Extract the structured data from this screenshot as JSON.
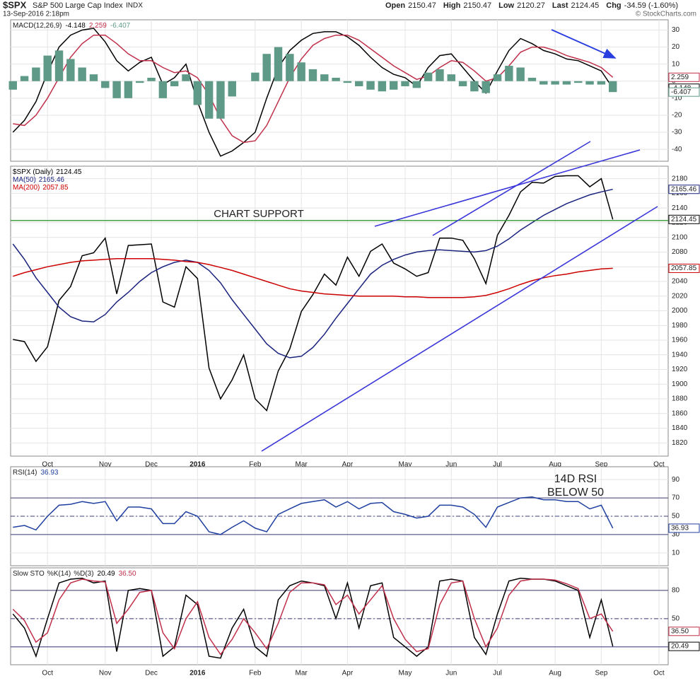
{
  "header": {
    "symbol": "$SPX",
    "name": "S&P 500 Large Cap Index",
    "exchange": "INDX",
    "timestamp": "13-Sep-2016 2:18pm",
    "quote": [
      [
        "Open",
        "2150.47"
      ],
      [
        "High",
        "2150.47"
      ],
      [
        "Low",
        "2120.27"
      ],
      [
        "Last",
        "2124.45"
      ],
      [
        "Chg",
        "-34.59 (-1.60%)"
      ]
    ],
    "credit": "© StockCharts.com"
  },
  "chart_data": [
    {
      "type": "line",
      "title": "MACD(12,26,9)",
      "ylim": [
        -47,
        36
      ],
      "yticks": [
        30,
        20,
        10,
        0,
        -10,
        -20,
        -30,
        -40
      ],
      "grid": true,
      "series": [
        {
          "color": "#000000",
          "values": [
            -30,
            -23,
            -12,
            5,
            20,
            27,
            30,
            31,
            23,
            12,
            6,
            11,
            14,
            -2,
            2,
            10,
            -12,
            -30,
            -44,
            -41,
            -36,
            -30,
            -10,
            8,
            18,
            24,
            28,
            29,
            29,
            26,
            21,
            14,
            8,
            4,
            2,
            -3,
            8,
            15,
            16,
            8,
            0,
            -7,
            6,
            18,
            25,
            22,
            18,
            16,
            13,
            12,
            9,
            6,
            -4.148,
            null,
            null,
            null,
            null
          ]
        },
        {
          "color": "#c0304a",
          "values": [
            -25,
            -26,
            -20,
            -10,
            2,
            14,
            22,
            27,
            27,
            22,
            16,
            12,
            12,
            8,
            5,
            6,
            2,
            -8,
            -22,
            -32,
            -36,
            -35,
            -26,
            -12,
            2,
            13,
            21,
            25,
            27,
            27,
            24,
            19,
            14,
            9,
            5,
            1,
            3,
            8,
            12,
            11,
            6,
            0,
            2,
            9,
            17,
            20,
            20,
            18,
            15,
            13,
            11,
            8,
            2.259,
            null,
            null,
            null,
            null
          ]
        },
        {
          "type": "bar",
          "color": "#5f9a88",
          "values": [
            -5,
            3,
            8,
            15,
            18,
            13,
            8,
            4,
            -4,
            -10,
            -10,
            -1,
            2,
            -10,
            -3,
            4,
            -14,
            -22,
            -22,
            -9,
            0,
            5,
            16,
            20,
            16,
            11,
            7,
            4,
            2,
            -1,
            -3,
            -5,
            -6,
            -5,
            -3,
            -4,
            5,
            7,
            4,
            -3,
            -6,
            -7,
            4,
            9,
            8,
            2,
            -2,
            -2,
            -2,
            -1,
            -2,
            -2,
            -6.407,
            null,
            null,
            null,
            null
          ]
        }
      ]
    },
    {
      "type": "line",
      "ylim": [
        1802,
        2197
      ],
      "yticks": [
        1820,
        1840,
        1860,
        1880,
        1900,
        1920,
        1940,
        1960,
        1980,
        2000,
        2020,
        2040,
        2060,
        2080,
        2100,
        2120,
        2140,
        2160,
        2180
      ],
      "grid": true,
      "categories": [
        null,
        null,
        null,
        "Oct",
        null,
        null,
        null,
        null,
        "Nov",
        null,
        null,
        null,
        "Dec",
        null,
        null,
        null,
        "2016",
        null,
        null,
        null,
        null,
        "Feb",
        null,
        null,
        null,
        "Mar",
        null,
        null,
        null,
        "Apr",
        null,
        null,
        null,
        null,
        "May",
        null,
        null,
        null,
        "Jun",
        null,
        null,
        null,
        "Jul",
        null,
        null,
        null,
        null,
        "Aug",
        null,
        null,
        null,
        "Sep",
        null,
        null,
        null,
        null,
        "Oct"
      ],
      "series": [
        {
          "name": "$SPX (Daily)",
          "color": "#000000",
          "values": [
            1961,
            1958,
            1931,
            1951,
            2014,
            2033,
            2075,
            2079,
            2099,
            2023,
            2089,
            2090,
            2091,
            2012,
            2005,
            2060,
            2044,
            1922,
            1880,
            1906,
            1940,
            1880,
            1864,
            1918,
            1948,
            1999,
            2022,
            2050,
            2035,
            2073,
            2047,
            2081,
            2091,
            2065,
            2057,
            2047,
            2052,
            2099,
            2099,
            2096,
            2071,
            2037,
            2103,
            2130,
            2162,
            2175,
            2174,
            2183,
            2184,
            2184,
            2169,
            2180,
            2124.45,
            null,
            null,
            null,
            null
          ]
        },
        {
          "name": "MA(50)",
          "color": "#1a237e",
          "values": [
            2091,
            2070,
            2045,
            2025,
            2005,
            1992,
            1986,
            1985,
            1995,
            2012,
            2025,
            2040,
            2052,
            2060,
            2066,
            2069,
            2066,
            2055,
            2038,
            2015,
            1995,
            1975,
            1955,
            1942,
            1936,
            1938,
            1950,
            1968,
            1990,
            2010,
            2030,
            2050,
            2062,
            2070,
            2076,
            2080,
            2082,
            2083,
            2082,
            2081,
            2080,
            2082,
            2088,
            2098,
            2110,
            2120,
            2130,
            2138,
            2146,
            2152,
            2158,
            2162,
            2165.46,
            null,
            null,
            null,
            null
          ]
        },
        {
          "name": "MA(200)",
          "color": "#cc0000",
          "values": [
            2047,
            2052,
            2056,
            2060,
            2063,
            2066,
            2068,
            2069,
            2070,
            2071,
            2071,
            2071,
            2071,
            2070,
            2069,
            2067,
            2066,
            2063,
            2059,
            2055,
            2050,
            2045,
            2040,
            2035,
            2030,
            2027,
            2025,
            2023,
            2022,
            2021,
            2020,
            2020,
            2020,
            2020,
            2019,
            2019,
            2018,
            2018,
            2018,
            2018,
            2019,
            2021,
            2025,
            2030,
            2036,
            2041,
            2045,
            2048,
            2050,
            2053,
            2055,
            2057,
            2057.85,
            null,
            null,
            null,
            null
          ]
        }
      ],
      "annotations": [
        {
          "text": "CHART SUPPORT",
          "value": 2123,
          "color": "#2e9a2e"
        }
      ]
    },
    {
      "type": "line",
      "title": "RSI(14)",
      "ylim": [
        -4,
        104
      ],
      "yticks": [
        90,
        70,
        50,
        30,
        10
      ],
      "grid": true,
      "reference_lines": [
        70,
        30
      ],
      "dashed_lines": [
        50
      ],
      "series": [
        {
          "color": "#2040a0",
          "values": [
            38,
            40,
            35,
            50,
            62,
            63,
            66,
            64,
            66,
            45,
            60,
            60,
            58,
            42,
            42,
            55,
            50,
            33,
            30,
            38,
            45,
            37,
            33,
            52,
            58,
            64,
            66,
            68,
            60,
            66,
            58,
            64,
            65,
            55,
            52,
            48,
            50,
            62,
            62,
            60,
            52,
            38,
            60,
            65,
            70,
            71,
            68,
            68,
            66,
            66,
            58,
            62,
            36.93,
            null,
            null,
            null,
            null
          ]
        }
      ],
      "annotations": [
        {
          "text": "14D RSI",
          "color": "#e00000"
        },
        {
          "text": "BELOW 50",
          "color": "#e00000"
        }
      ]
    },
    {
      "type": "line",
      "title": "Slow STO",
      "ylim": [
        1,
        104
      ],
      "yticks": [
        80,
        50,
        20
      ],
      "grid": true,
      "reference_lines": [
        80,
        20
      ],
      "dashed_lines": [
        50
      ],
      "categories": [
        null,
        null,
        null,
        "Oct",
        null,
        null,
        null,
        null,
        "Nov",
        null,
        null,
        null,
        "Dec",
        null,
        null,
        null,
        "2016",
        null,
        null,
        null,
        null,
        "Feb",
        null,
        null,
        null,
        "Mar",
        null,
        null,
        null,
        "Apr",
        null,
        null,
        null,
        null,
        "May",
        null,
        null,
        null,
        "Jun",
        null,
        null,
        null,
        "Jul",
        null,
        null,
        null,
        null,
        "Aug",
        null,
        null,
        null,
        "Sep",
        null,
        null,
        null,
        null,
        "Oct"
      ],
      "series": [
        {
          "name": "%K(14)",
          "color": "#000000",
          "values": [
            55,
            40,
            10,
            50,
            88,
            92,
            93,
            88,
            90,
            15,
            80,
            82,
            80,
            10,
            20,
            75,
            65,
            10,
            8,
            40,
            60,
            20,
            10,
            70,
            85,
            90,
            88,
            85,
            50,
            88,
            40,
            85,
            88,
            30,
            20,
            10,
            20,
            90,
            92,
            90,
            30,
            12,
            55,
            90,
            93,
            92,
            92,
            90,
            85,
            80,
            30,
            70,
            20.49,
            null,
            null,
            null,
            null
          ]
        },
        {
          "name": "%D(3)",
          "color": "#c0304a",
          "values": [
            60,
            48,
            25,
            35,
            70,
            88,
            92,
            90,
            89,
            45,
            60,
            78,
            80,
            35,
            18,
            50,
            68,
            30,
            12,
            28,
            50,
            35,
            18,
            45,
            78,
            88,
            88,
            86,
            65,
            75,
            55,
            70,
            85,
            50,
            28,
            15,
            18,
            65,
            88,
            90,
            50,
            20,
            40,
            75,
            90,
            92,
            92,
            91,
            87,
            82,
            50,
            55,
            36.5,
            null,
            null,
            null,
            null
          ],
          "value_labels": [
            null,
            null,
            null,
            null,
            null,
            null,
            null,
            null,
            null,
            null,
            null,
            null,
            null,
            null,
            null,
            null,
            null,
            null,
            null,
            null,
            null,
            null,
            null,
            null,
            null,
            null,
            null,
            null,
            null,
            null,
            null,
            null,
            null,
            null,
            null,
            null,
            null,
            null,
            null,
            null,
            null,
            null,
            null,
            null,
            null,
            null,
            null,
            null,
            null,
            null,
            null,
            null,
            "36.50",
            null,
            null,
            null,
            null
          ]
        }
      ]
    }
  ]
}
